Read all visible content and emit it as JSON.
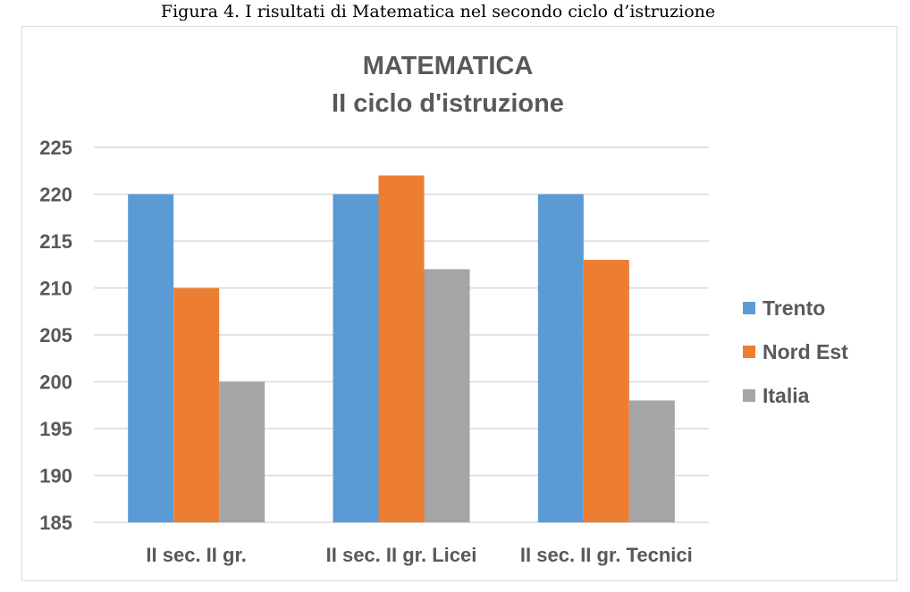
{
  "caption": "Figura 4. I risultati di Matematica nel secondo ciclo d’istruzione",
  "chart_data": {
    "type": "bar",
    "title": "MATEMATICA",
    "subtitle": "II ciclo d'istruzione",
    "categories": [
      "II sec. II gr.",
      "II sec. II gr. Licei",
      "II sec. II gr. Tecnici"
    ],
    "series": [
      {
        "name": "Trento",
        "color": "#5b9bd5",
        "values": [
          220,
          220,
          220
        ]
      },
      {
        "name": "Nord Est",
        "color": "#ed7d31",
        "values": [
          210,
          222,
          213
        ]
      },
      {
        "name": "Italia",
        "color": "#a5a5a5",
        "values": [
          200,
          212,
          198
        ]
      }
    ],
    "xlabel": "",
    "ylabel": "",
    "ylim": [
      185,
      225
    ],
    "yticks": [
      185,
      190,
      195,
      200,
      205,
      210,
      215,
      220,
      225
    ],
    "grid": true,
    "legend": "right",
    "gridline_color": "#d9d9d9"
  }
}
